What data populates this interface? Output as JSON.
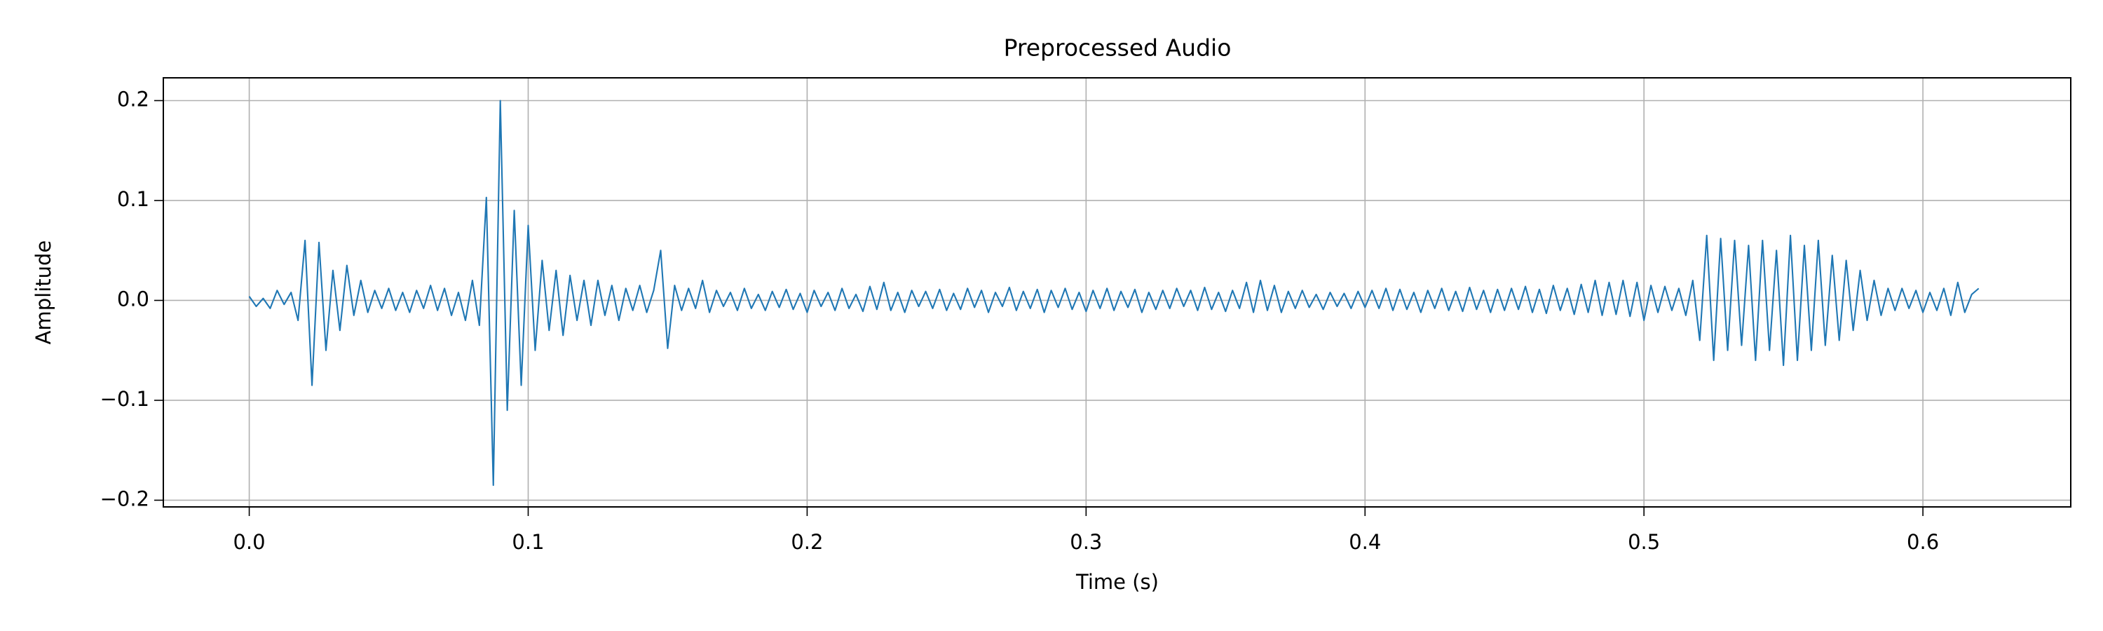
{
  "chart_data": {
    "type": "line",
    "title": "Preprocessed Audio",
    "x_label": "Time (s)",
    "y_label": "Amplitude",
    "xlim": [
      -0.0308,
      0.653
    ],
    "ylim": [
      -0.2067,
      0.2228
    ],
    "xticks": [
      {
        "value": 0,
        "label": "0.0"
      },
      0.1,
      0.2,
      0.3,
      0.4,
      0.5,
      0.6
    ],
    "yticks": [
      {
        "value": -0.2,
        "label": "−0.2"
      },
      {
        "value": -0.1,
        "label": "−0.1"
      },
      {
        "value": 0,
        "label": "0.0"
      },
      0.1,
      0.2
    ],
    "grid": true,
    "x": [
      0,
      0.0025,
      0.005,
      0.0075,
      0.01,
      0.0125,
      0.015,
      0.0175,
      0.02,
      0.0225,
      0.025,
      0.0275,
      0.03,
      0.0325,
      0.035,
      0.0375,
      0.04,
      0.0425,
      0.045,
      0.0475,
      0.05,
      0.0525,
      0.055,
      0.0575,
      0.06,
      0.0625,
      0.065,
      0.0675,
      0.07,
      0.0725,
      0.075,
      0.0775,
      0.08,
      0.0825,
      0.085,
      0.0875,
      0.09,
      0.0925,
      0.095,
      0.0975,
      0.1,
      0.1025,
      0.105,
      0.1075,
      0.11,
      0.1125,
      0.115,
      0.1175,
      0.12,
      0.1225,
      0.125,
      0.1275,
      0.13,
      0.1325,
      0.135,
      0.1375,
      0.14,
      0.1425,
      0.145,
      0.1475,
      0.15,
      0.1525,
      0.155,
      0.1575,
      0.16,
      0.1625,
      0.165,
      0.1675,
      0.17,
      0.1725,
      0.175,
      0.1775,
      0.18,
      0.1825,
      0.185,
      0.1875,
      0.19,
      0.1925,
      0.195,
      0.1975,
      0.2,
      0.2025,
      0.205,
      0.2075,
      0.21,
      0.2125,
      0.215,
      0.2175,
      0.22,
      0.2225,
      0.225,
      0.2275,
      0.23,
      0.2325,
      0.235,
      0.2375,
      0.24,
      0.2425,
      0.245,
      0.2475,
      0.25,
      0.2525,
      0.255,
      0.2575,
      0.26,
      0.2625,
      0.265,
      0.2675,
      0.27,
      0.2725,
      0.275,
      0.2775,
      0.28,
      0.2825,
      0.285,
      0.2875,
      0.29,
      0.2925,
      0.295,
      0.2975,
      0.3,
      0.3025,
      0.305,
      0.3075,
      0.31,
      0.3125,
      0.315,
      0.3175,
      0.32,
      0.3225,
      0.325,
      0.3275,
      0.33,
      0.3325,
      0.335,
      0.3375,
      0.34,
      0.3425,
      0.345,
      0.3475,
      0.35,
      0.3525,
      0.355,
      0.3575,
      0.36,
      0.3625,
      0.365,
      0.3675,
      0.37,
      0.3725,
      0.375,
      0.3775,
      0.38,
      0.3825,
      0.385,
      0.3875,
      0.39,
      0.3925,
      0.395,
      0.3975,
      0.4,
      0.4025,
      0.405,
      0.4075,
      0.41,
      0.4125,
      0.415,
      0.4175,
      0.42,
      0.4225,
      0.425,
      0.4275,
      0.43,
      0.4325,
      0.435,
      0.4375,
      0.44,
      0.4425,
      0.445,
      0.4475,
      0.45,
      0.4525,
      0.455,
      0.4575,
      0.46,
      0.4625,
      0.465,
      0.4675,
      0.47,
      0.4725,
      0.475,
      0.4775,
      0.48,
      0.4825,
      0.485,
      0.4875,
      0.49,
      0.4925,
      0.495,
      0.4975,
      0.5,
      0.5025,
      0.505,
      0.5075,
      0.51,
      0.5125,
      0.515,
      0.5175,
      0.52,
      0.5225,
      0.525,
      0.5275,
      0.53,
      0.5325,
      0.535,
      0.5375,
      0.54,
      0.5425,
      0.545,
      0.5475,
      0.55,
      0.5525,
      0.555,
      0.5575,
      0.56,
      0.5625,
      0.565,
      0.5675,
      0.57,
      0.5725,
      0.575,
      0.5775,
      0.58,
      0.5825,
      0.585,
      0.5875,
      0.59,
      0.5925,
      0.595,
      0.5975,
      0.6,
      0.6025,
      0.605,
      0.6075,
      0.61,
      0.6125,
      0.615,
      0.6175,
      0.62
    ],
    "series": [
      {
        "color": "#1f77b4",
        "values": [
          0.004,
          -0.006,
          0.002,
          -0.008,
          0.01,
          -0.004,
          0.008,
          -0.02,
          0.06,
          -0.085,
          0.058,
          -0.05,
          0.03,
          -0.03,
          0.035,
          -0.015,
          0.02,
          -0.012,
          0.01,
          -0.008,
          0.012,
          -0.01,
          0.008,
          -0.012,
          0.01,
          -0.008,
          0.015,
          -0.01,
          0.012,
          -0.015,
          0.008,
          -0.02,
          0.02,
          -0.025,
          0.103,
          -0.185,
          0.2,
          -0.11,
          0.09,
          -0.085,
          0.075,
          -0.05,
          0.04,
          -0.03,
          0.03,
          -0.035,
          0.025,
          -0.02,
          0.02,
          -0.025,
          0.02,
          -0.015,
          0.015,
          -0.02,
          0.012,
          -0.01,
          0.015,
          -0.012,
          0.01,
          0.05,
          -0.048,
          0.015,
          -0.01,
          0.012,
          -0.008,
          0.02,
          -0.012,
          0.01,
          -0.006,
          0.008,
          -0.01,
          0.012,
          -0.008,
          0.006,
          -0.01,
          0.009,
          -0.007,
          0.011,
          -0.009,
          0.007,
          -0.012,
          0.01,
          -0.006,
          0.008,
          -0.01,
          0.012,
          -0.008,
          0.006,
          -0.011,
          0.014,
          -0.009,
          0.018,
          -0.01,
          0.008,
          -0.012,
          0.01,
          -0.006,
          0.009,
          -0.008,
          0.011,
          -0.01,
          0.007,
          -0.009,
          0.012,
          -0.007,
          0.01,
          -0.012,
          0.008,
          -0.006,
          0.013,
          -0.01,
          0.009,
          -0.008,
          0.011,
          -0.012,
          0.01,
          -0.007,
          0.012,
          -0.009,
          0.008,
          -0.011,
          0.01,
          -0.008,
          0.012,
          -0.01,
          0.009,
          -0.007,
          0.011,
          -0.012,
          0.008,
          -0.009,
          0.01,
          -0.008,
          0.012,
          -0.006,
          0.01,
          -0.01,
          0.013,
          -0.009,
          0.008,
          -0.011,
          0.01,
          -0.008,
          0.018,
          -0.012,
          0.02,
          -0.01,
          0.015,
          -0.012,
          0.009,
          -0.008,
          0.01,
          -0.007,
          0.006,
          -0.009,
          0.008,
          -0.006,
          0.007,
          -0.008,
          0.009,
          -0.007,
          0.01,
          -0.008,
          0.012,
          -0.01,
          0.011,
          -0.009,
          0.008,
          -0.012,
          0.01,
          -0.008,
          0.012,
          -0.01,
          0.009,
          -0.011,
          0.013,
          -0.009,
          0.01,
          -0.012,
          0.011,
          -0.01,
          0.012,
          -0.009,
          0.014,
          -0.012,
          0.011,
          -0.013,
          0.015,
          -0.01,
          0.012,
          -0.014,
          0.016,
          -0.012,
          0.02,
          -0.015,
          0.018,
          -0.014,
          0.02,
          -0.016,
          0.018,
          -0.02,
          0.015,
          -0.012,
          0.014,
          -0.01,
          0.012,
          -0.015,
          0.02,
          -0.04,
          0.065,
          -0.06,
          0.062,
          -0.05,
          0.06,
          -0.045,
          0.055,
          -0.06,
          0.06,
          -0.05,
          0.05,
          -0.065,
          0.065,
          -0.06,
          0.055,
          -0.05,
          0.06,
          -0.045,
          0.045,
          -0.04,
          0.04,
          -0.03,
          0.03,
          -0.02,
          0.02,
          -0.015,
          0.012,
          -0.01,
          0.012,
          -0.008,
          0.01,
          -0.012,
          0.008,
          -0.01,
          0.012,
          -0.015,
          0.018,
          -0.012,
          0.006,
          0.012
        ]
      }
    ]
  }
}
